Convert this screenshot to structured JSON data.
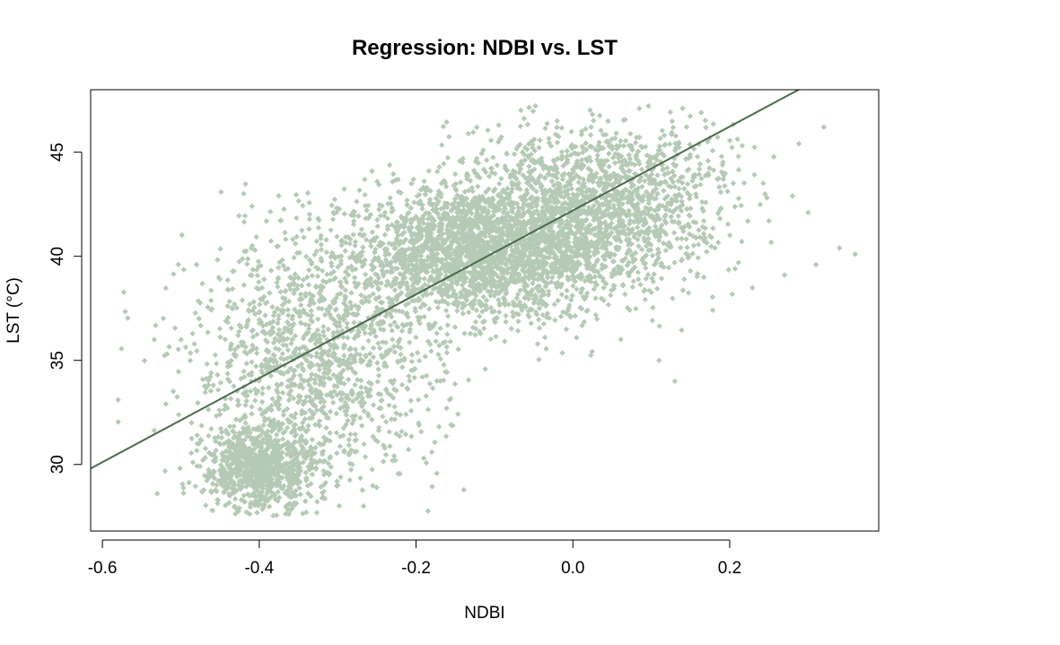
{
  "chart_data": {
    "type": "scatter",
    "title": "Regression: NDBI vs. LST",
    "xlabel": "NDBI",
    "ylabel": "LST (°C)",
    "xlim": [
      -0.615,
      0.39
    ],
    "ylim": [
      26.8,
      48.0
    ],
    "x_ticks": [
      -0.6,
      -0.4,
      -0.2,
      0.0,
      0.2
    ],
    "x_tick_labels": [
      "-0.6",
      "-0.4",
      "-0.2",
      "0.0",
      "0.2"
    ],
    "y_ticks": [
      30,
      35,
      40,
      45
    ],
    "y_tick_labels": [
      "30",
      "35",
      "40",
      "45"
    ],
    "grid": false,
    "point_color": "#b5cab5",
    "line_color": "#4a6a4a",
    "regression_line": {
      "intercept": 42.2,
      "slope": 20.15
    },
    "point_count": 6000,
    "clusters": [
      {
        "cx": -0.13,
        "cy": 40.1,
        "sx": 0.085,
        "sy": 1.6,
        "weight": 0.34
      },
      {
        "cx": -0.02,
        "cy": 41.8,
        "sx": 0.07,
        "sy": 2.1,
        "weight": 0.2
      },
      {
        "cx": -0.4,
        "cy": 29.8,
        "sx": 0.035,
        "sy": 1.0,
        "weight": 0.14
      },
      {
        "cx": -0.33,
        "cy": 34.8,
        "sx": 0.08,
        "sy": 2.9,
        "weight": 0.22
      },
      {
        "cx": 0.09,
        "cy": 43.0,
        "sx": 0.06,
        "sy": 2.0,
        "weight": 0.1
      }
    ],
    "outliers": [
      {
        "x": -0.58,
        "y": 33.1
      },
      {
        "x": 0.32,
        "y": 46.2
      },
      {
        "x": 0.36,
        "y": 40.1
      },
      {
        "x": 0.34,
        "y": 40.4
      },
      {
        "x": 0.31,
        "y": 39.6
      },
      {
        "x": 0.3,
        "y": 42.1
      },
      {
        "x": 0.28,
        "y": 42.9
      },
      {
        "x": 0.27,
        "y": 39.1
      },
      {
        "x": 0.25,
        "y": 41.7
      },
      {
        "x": 0.13,
        "y": 34.0
      },
      {
        "x": 0.11,
        "y": 35.0
      },
      {
        "x": -0.53,
        "y": 28.6
      },
      {
        "x": -0.46,
        "y": 27.8
      },
      {
        "x": 0.14,
        "y": 47.1
      },
      {
        "x": -0.02,
        "y": 46.5
      }
    ]
  }
}
